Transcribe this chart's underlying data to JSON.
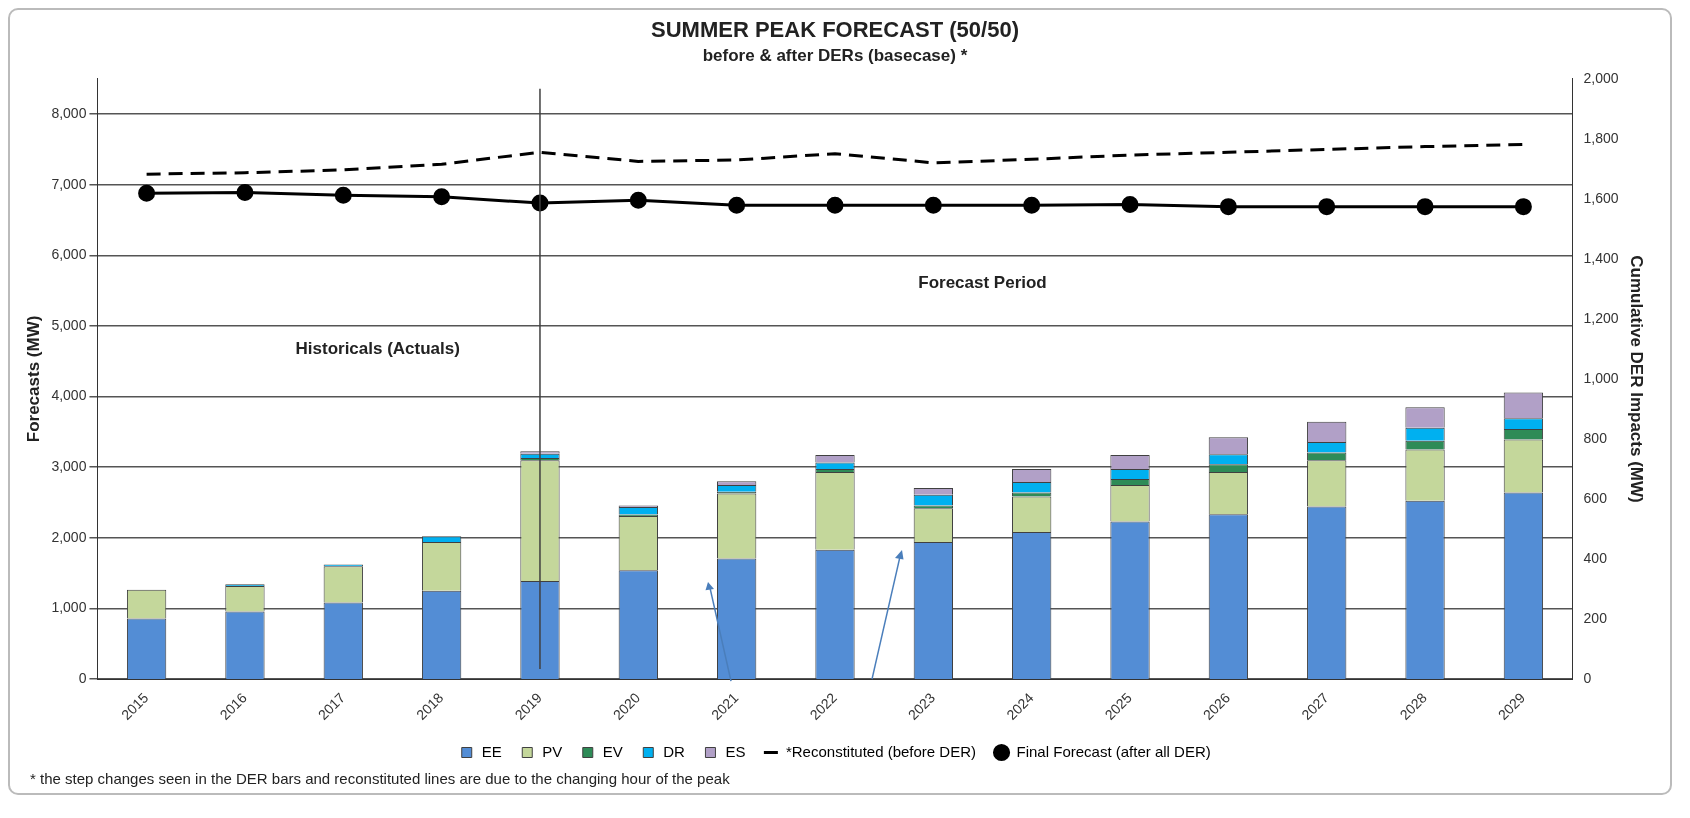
{
  "chart_data": {
    "type": "bar",
    "title": "SUMMER PEAK FORECAST (50/50)",
    "subtitle": "before & after DERs (basecase) *",
    "ylabel": "Forecasts (MW)",
    "y2label": "Cumulative DER Impacts (MW)",
    "categories": [
      "2015",
      "2016",
      "2017",
      "2018",
      "2019",
      "2020",
      "2021",
      "2022",
      "2023",
      "2024",
      "2025",
      "2026",
      "2027",
      "2028",
      "2029"
    ],
    "stacked": true,
    "series": [
      {
        "name": "EE",
        "color": "#538dd5",
        "axis": "y2",
        "values": [
          202,
          225,
          255,
          294,
          327,
          363,
          402,
          431,
          457,
          490,
          525,
          549,
          575,
          594,
          622
        ]
      },
      {
        "name": "PV",
        "color": "#c4d79b",
        "axis": "y2",
        "values": [
          96,
          85,
          121,
          163,
          402,
          180,
          216,
          259,
          112,
          118,
          122,
          141,
          154,
          171,
          176
        ]
      },
      {
        "name": "EV",
        "color": "#2e8b57",
        "axis": "y2",
        "values": [
          0,
          0,
          0,
          0,
          8,
          5,
          6,
          10,
          9,
          14,
          20,
          26,
          26,
          29,
          35
        ]
      },
      {
        "name": "DR",
        "color": "#00b0f0",
        "axis": "y2",
        "values": [
          null,
          6,
          6,
          19,
          14,
          25,
          23,
          22,
          36,
          35,
          33,
          33,
          35,
          43,
          36
        ]
      },
      {
        "name": "ES",
        "color": "#b1a0c7",
        "axis": "y2",
        "values": [
          null,
          null,
          null,
          0,
          8,
          5,
          12,
          25,
          23,
          43,
          47,
          57,
          67,
          69,
          86
        ]
      },
      {
        "name": "*Reconstituted (before DER)",
        "type": "line",
        "color": "#000000",
        "axis": "y",
        "line_style": "dashed",
        "marker": "none",
        "values": [
          7150,
          7170,
          7210,
          7290,
          7460,
          7330,
          7350,
          7440,
          7310,
          7360,
          7420,
          7460,
          7500,
          7540,
          7570
        ]
      },
      {
        "name": "Final Forecast (after all DER)",
        "type": "line",
        "color": "#000000",
        "axis": "y",
        "line_style": "solid",
        "marker": "circle",
        "values": [
          6880,
          6890,
          6850,
          6830,
          6740,
          6780,
          6710,
          6710,
          6710,
          6710,
          6720,
          6690,
          6690,
          6690,
          6690
        ]
      }
    ],
    "ylim": [
      0,
      8500
    ],
    "yticks": [
      0,
      {
        "value": 1000,
        "label": "1,000"
      },
      {
        "value": 2000,
        "label": "2,000"
      },
      {
        "value": 3000,
        "label": "3,000"
      },
      {
        "value": 4000,
        "label": "4,000"
      },
      {
        "value": 5000,
        "label": "5,000"
      },
      {
        "value": 6000,
        "label": "6,000"
      },
      {
        "value": 7000,
        "label": "7,000"
      },
      {
        "value": 8000,
        "label": "8,000"
      }
    ],
    "y2lim": [
      0,
      2000
    ],
    "y2ticks": [
      0,
      200,
      400,
      600,
      800,
      {
        "value": 1000,
        "label": "1,000"
      },
      {
        "value": 1200,
        "label": "1,200"
      },
      {
        "value": 1400,
        "label": "1,400"
      },
      {
        "value": 1600,
        "label": "1,600"
      },
      {
        "value": 1800,
        "label": "1,800"
      },
      {
        "value": 2000,
        "label": "2,000"
      }
    ],
    "grid": "y",
    "legend": "bottom",
    "ref_lines": [
      {
        "axis": "x",
        "value": "2019",
        "color": "#404040"
      }
    ],
    "annotations": [
      "Historicals (Actuals)",
      "Forecast Period",
      "* the step changes seen in the DER bars and reconstituted lines are due to the changing hour of the peak"
    ]
  }
}
